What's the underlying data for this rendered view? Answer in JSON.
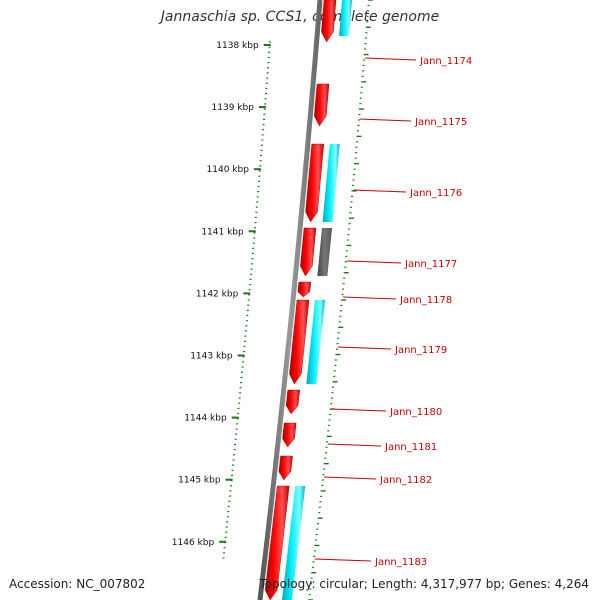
{
  "title": "Jannaschia sp. CCS1, complete genome",
  "accession_label": "Accession: NC_007802",
  "topology_label": "Topology: circular; Length: 4,317,977 bp; Genes: 4,264",
  "colors": {
    "backbone": "#7a7a7a",
    "gene_red": "#ff0000",
    "gene_cyan": "#00e5ee",
    "gene_gray": "#6e6e6e",
    "tick": "#1a7a1a",
    "gene_label": "#cc0000"
  },
  "ruler": {
    "labels": [
      "1138 kbp",
      "1139 kbp",
      "1140 kbp",
      "1141 kbp",
      "1142 kbp",
      "1143 kbp",
      "1144 kbp",
      "1145 kbp",
      "1146 kbp"
    ]
  },
  "genes": [
    {
      "name": "Jann_1174",
      "strand": "+",
      "color": "red",
      "from": 0.0,
      "to": 0.07
    },
    {
      "name": "Jann_1175",
      "strand": "+",
      "color": "red",
      "from": 0.14,
      "to": 0.21
    },
    {
      "name": "Jann_1176",
      "strand": "+",
      "color": "red",
      "from": 0.24,
      "to": 0.37
    },
    {
      "name": "Jann_1177",
      "strand": "+",
      "color": "red",
      "from": 0.38,
      "to": 0.46
    },
    {
      "name": "Jann_1178",
      "strand": "+",
      "color": "red",
      "from": 0.47,
      "to": 0.495
    },
    {
      "name": "Jann_1179",
      "strand": "+",
      "color": "red",
      "from": 0.5,
      "to": 0.64
    },
    {
      "name": "Jann_1180",
      "strand": "+",
      "color": "red",
      "from": 0.65,
      "to": 0.69
    },
    {
      "name": "Jann_1181",
      "strand": "+",
      "color": "red",
      "from": 0.705,
      "to": 0.745
    },
    {
      "name": "Jann_1182",
      "strand": "+",
      "color": "red",
      "from": 0.76,
      "to": 0.8
    },
    {
      "name": "Jann_1183",
      "strand": "+",
      "color": "red",
      "from": 0.81,
      "to": 1.0
    }
  ],
  "cds": [
    {
      "color": "cyan",
      "from": 0.0,
      "to": 0.06
    },
    {
      "color": "cyan",
      "from": 0.24,
      "to": 0.37
    },
    {
      "color": "gray",
      "from": 0.38,
      "to": 0.46
    },
    {
      "color": "cyan",
      "from": 0.5,
      "to": 0.64
    },
    {
      "color": "cyan",
      "from": 0.81,
      "to": 1.0
    }
  ]
}
